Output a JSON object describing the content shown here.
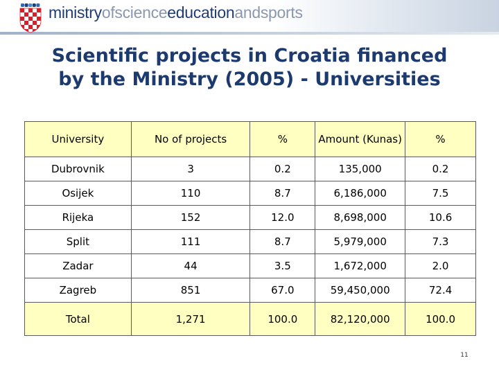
{
  "header": {
    "brand": {
      "part1": "ministry",
      "part2": "ofscience",
      "part3": "education",
      "part4": "andsports"
    },
    "logo_icon": "croatian-checkerboard-shield-icon",
    "colors": {
      "brand_dark": "#1f3d73",
      "brand_light": "#8a97ad",
      "shield_red": "#d3202a"
    }
  },
  "title_line1": "Scientific projects in Croatia financed",
  "title_line2": "by the Ministry (2005) - Universities",
  "table": {
    "columns": [
      "University",
      "No of projects",
      "%",
      "Amount (Kunas)",
      "%"
    ],
    "rows": [
      [
        "Dubrovnik",
        "3",
        "0.2",
        "135,000",
        "0.2"
      ],
      [
        "Osijek",
        "110",
        "8.7",
        "6,186,000",
        "7.5"
      ],
      [
        "Rijeka",
        "152",
        "12.0",
        "8,698,000",
        "10.6"
      ],
      [
        "Split",
        "111",
        "8.7",
        "5,979,000",
        "7.3"
      ],
      [
        "Zadar",
        "44",
        "3.5",
        "1,672,000",
        "2.0"
      ],
      [
        "Zagreb",
        "851",
        "67.0",
        "59,450,000",
        "72.4"
      ]
    ],
    "total": [
      "Total",
      "1,271",
      "100.0",
      "82,120,000",
      "100.0"
    ],
    "header_bg": "#ffffc2"
  },
  "page_number": "11"
}
